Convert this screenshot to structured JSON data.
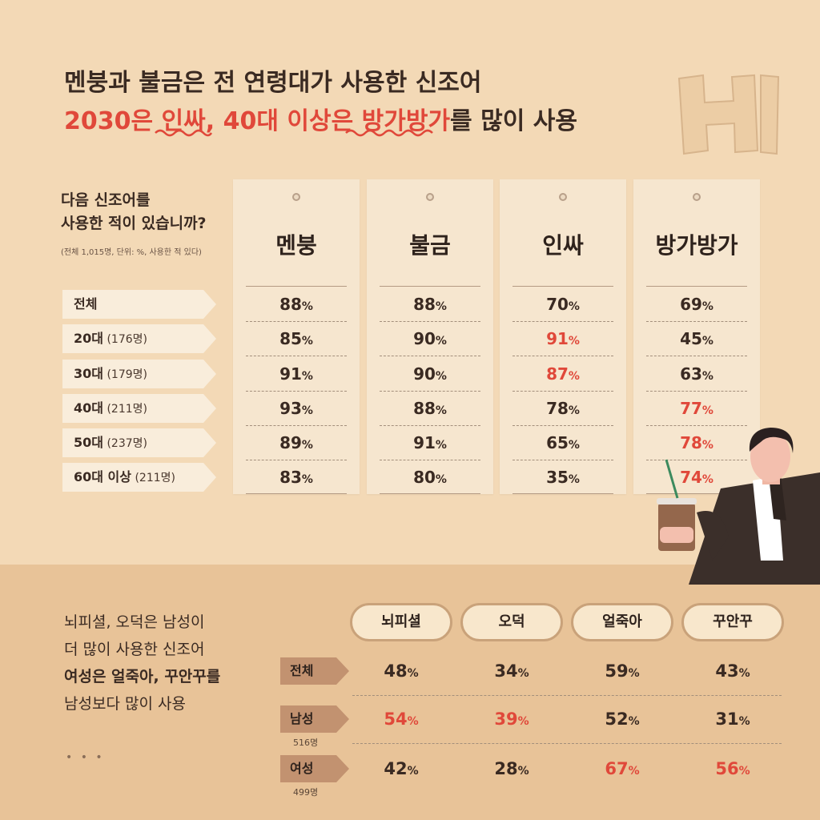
{
  "headline": {
    "line1": "멘붕과 불금은 전 연령대가 사용한 신조어",
    "line2_a": "2030은 ",
    "line2_b": "인싸",
    "line2_c": ", 40대 이상은 ",
    "line2_d": "방가방가",
    "line2_e": "를 많이 사용"
  },
  "question": {
    "line1": "다음 신조어를",
    "line2": "사용한 적이 있습니까?",
    "note": "(전체 1,015명, 단위: %, 사용한 적 있다)"
  },
  "words": [
    "멘붕",
    "불금",
    "인싸",
    "방가방가"
  ],
  "rows": [
    {
      "label": "전체",
      "sub": ""
    },
    {
      "label": "20대",
      "sub": "(176명)"
    },
    {
      "label": "30대",
      "sub": "(179명)"
    },
    {
      "label": "40대",
      "sub": "(211명)"
    },
    {
      "label": "50대",
      "sub": "(237명)"
    },
    {
      "label": "60대 이상",
      "sub": "(211명)"
    }
  ],
  "table": [
    [
      "88",
      "88",
      "70",
      "69"
    ],
    [
      "85",
      "90",
      "91",
      "45"
    ],
    [
      "91",
      "90",
      "87",
      "63"
    ],
    [
      "93",
      "88",
      "78",
      "77"
    ],
    [
      "89",
      "91",
      "65",
      "78"
    ],
    [
      "83",
      "80",
      "35",
      "74"
    ]
  ],
  "table_highlight": [
    [
      2,
      1
    ],
    [
      2,
      2
    ],
    [
      3,
      3
    ],
    [
      3,
      4
    ],
    [
      3,
      5
    ]
  ],
  "pct_symbol": "%",
  "bottom": {
    "text1": "뇌피셜, 오덕은 남성이",
    "text2": "더 많이 사용한 신조어",
    "text3": "여성은 얼죽아, 꾸안꾸를",
    "text4": "남성보다 많이 사용",
    "dots": "• • •",
    "words": [
      "뇌피셜",
      "오덕",
      "얼죽아",
      "꾸안꾸"
    ],
    "rows": [
      {
        "label": "전체",
        "sub": ""
      },
      {
        "label": "남성",
        "sub": "516명"
      },
      {
        "label": "여성",
        "sub": "499명"
      }
    ],
    "table": [
      [
        "48",
        "34",
        "59",
        "43"
      ],
      [
        "54",
        "39",
        "52",
        "31"
      ],
      [
        "42",
        "28",
        "67",
        "56"
      ]
    ],
    "highlight": [
      [
        0,
        1
      ],
      [
        1,
        1
      ],
      [
        2,
        2
      ],
      [
        3,
        2
      ]
    ]
  },
  "colors": {
    "accent_red": "#e0483a",
    "top_bg": "#f3d9b6",
    "bottom_bg": "#e8c398",
    "tag_bg": "#f6e6cf"
  }
}
